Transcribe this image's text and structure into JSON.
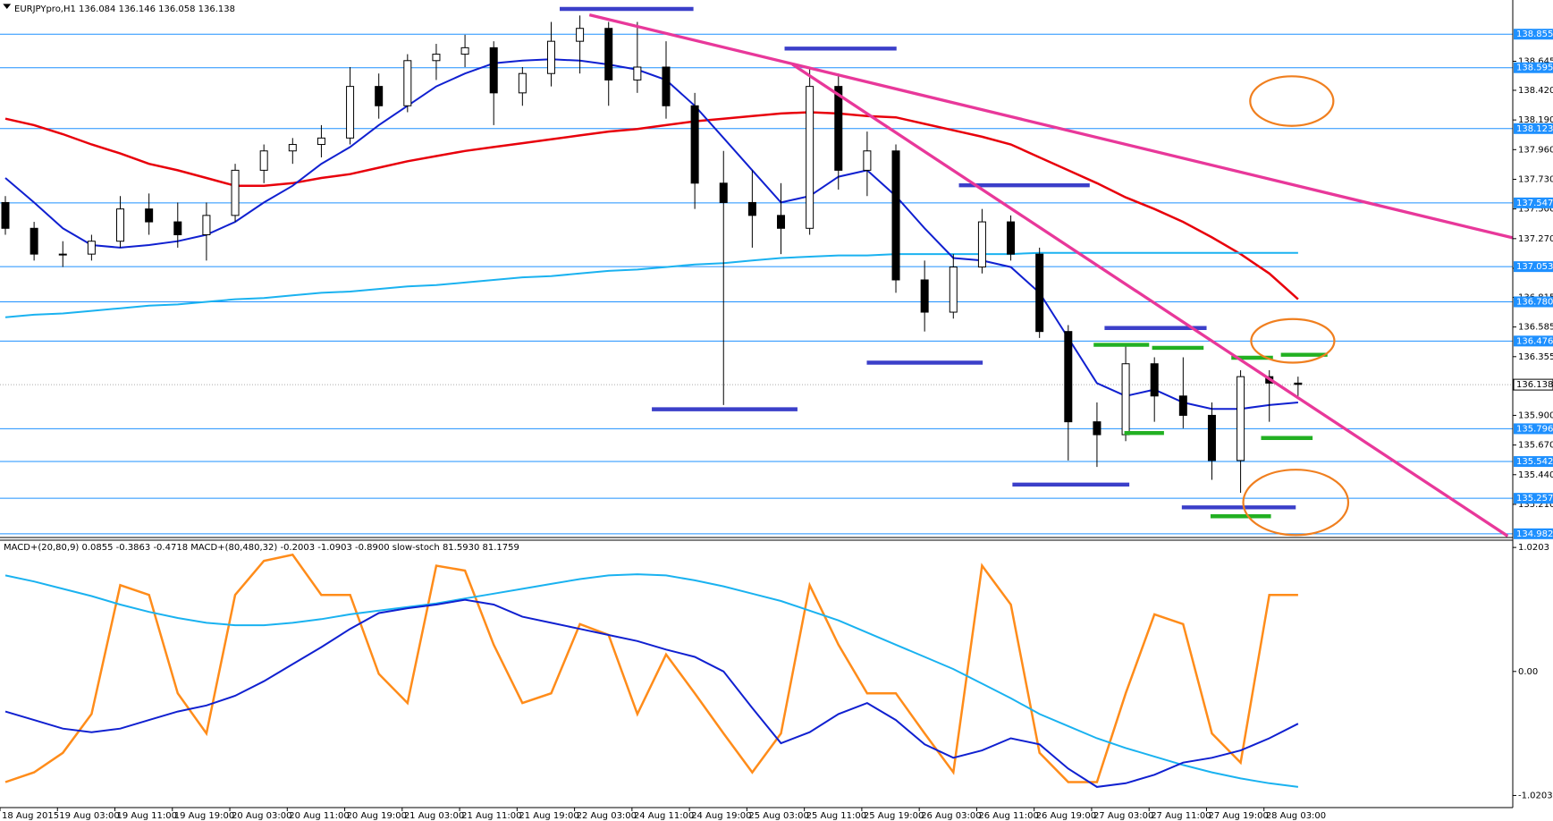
{
  "chart_data": {
    "type": "candlestick",
    "title": "EURJPYpro,H1 136.084 136.146 136.058 136.138",
    "categories": [
      "18 Aug 2015",
      null,
      "19 Aug 03:00",
      null,
      "19 Aug 11:00",
      null,
      "19 Aug 19:00",
      null,
      "20 Aug 03:00",
      null,
      "20 Aug 11:00",
      null,
      "20 Aug 19:00",
      null,
      "21 Aug 03:00",
      null,
      "21 Aug 11:00",
      null,
      "21 Aug 19:00",
      null,
      "22 Aug 03:00",
      null,
      "24 Aug 11:00",
      null,
      "24 Aug 19:00",
      null,
      "25 Aug 03:00",
      null,
      "25 Aug 11:00",
      null,
      "25 Aug 19:00",
      null,
      "26 Aug 03:00",
      null,
      "26 Aug 11:00",
      null,
      "26 Aug 19:00",
      null,
      "27 Aug 03:00",
      null,
      "27 Aug 11:00",
      null,
      "27 Aug 19:00",
      null,
      "28 Aug 03:00",
      null
    ],
    "open": [
      137.55,
      137.35,
      137.15,
      137.15,
      137.25,
      137.5,
      137.4,
      137.3,
      137.45,
      137.8,
      137.95,
      138.0,
      138.05,
      138.45,
      138.3,
      138.65,
      138.7,
      138.75,
      138.4,
      138.55,
      138.8,
      138.9,
      138.5,
      138.6,
      138.3,
      137.7,
      137.55,
      137.45,
      137.35,
      138.45,
      137.8,
      137.95,
      136.95,
      136.7,
      137.05,
      137.4,
      137.15,
      136.55,
      135.85,
      135.75,
      136.3,
      136.05,
      135.9,
      135.55,
      136.2,
      136.15
    ],
    "high": [
      137.6,
      137.4,
      137.25,
      137.3,
      137.6,
      137.62,
      137.55,
      137.55,
      137.85,
      138.0,
      138.05,
      138.15,
      138.6,
      138.55,
      138.7,
      138.78,
      138.85,
      138.8,
      138.6,
      138.95,
      139.0,
      138.95,
      138.95,
      138.8,
      138.4,
      137.95,
      137.8,
      137.7,
      138.6,
      138.55,
      138.1,
      138.0,
      137.1,
      137.15,
      137.5,
      137.45,
      137.2,
      136.6,
      136.0,
      136.45,
      136.35,
      136.35,
      136.0,
      136.25,
      136.25,
      136.2
    ],
    "low": [
      137.3,
      137.1,
      137.05,
      137.1,
      137.2,
      137.3,
      137.2,
      137.1,
      137.4,
      137.7,
      137.85,
      137.9,
      138.0,
      138.2,
      138.25,
      138.5,
      138.6,
      138.15,
      138.3,
      138.45,
      138.55,
      138.3,
      138.4,
      138.2,
      137.5,
      135.98,
      137.2,
      137.15,
      137.3,
      137.65,
      137.6,
      136.85,
      136.55,
      136.65,
      137.0,
      137.1,
      136.5,
      135.55,
      135.5,
      135.7,
      135.85,
      135.8,
      135.4,
      135.3,
      135.85,
      136.05
    ],
    "close": [
      137.35,
      137.15,
      137.15,
      137.25,
      137.5,
      137.4,
      137.3,
      137.45,
      137.8,
      137.95,
      138.0,
      138.05,
      138.45,
      138.3,
      138.65,
      138.7,
      138.75,
      138.4,
      138.55,
      138.8,
      138.9,
      138.5,
      138.6,
      138.3,
      137.7,
      137.55,
      137.45,
      137.35,
      138.45,
      137.8,
      137.95,
      136.95,
      136.7,
      137.05,
      137.4,
      137.15,
      136.55,
      135.85,
      135.75,
      136.3,
      136.05,
      135.9,
      135.55,
      136.2,
      136.15,
      136.14
    ],
    "overlays": [
      {
        "color": "#e8000b",
        "values": [
          138.2,
          138.15,
          138.08,
          138.0,
          137.93,
          137.85,
          137.8,
          137.74,
          137.68,
          137.68,
          137.7,
          137.74,
          137.77,
          137.82,
          137.87,
          137.91,
          137.95,
          137.98,
          138.01,
          138.04,
          138.07,
          138.1,
          138.12,
          138.15,
          138.18,
          138.2,
          138.22,
          138.24,
          138.25,
          138.24,
          138.22,
          138.21,
          138.16,
          138.11,
          138.06,
          138.0,
          137.9,
          137.8,
          137.7,
          137.59,
          137.5,
          137.4,
          137.28,
          137.15,
          137.0,
          136.8
        ]
      },
      {
        "color": "#1ab2f0",
        "values": [
          136.66,
          136.68,
          136.69,
          136.71,
          136.73,
          136.75,
          136.76,
          136.78,
          136.8,
          136.81,
          136.83,
          136.85,
          136.86,
          136.88,
          136.9,
          136.91,
          136.93,
          136.95,
          136.97,
          136.98,
          137.0,
          137.02,
          137.03,
          137.05,
          137.07,
          137.08,
          137.1,
          137.12,
          137.13,
          137.14,
          137.14,
          137.15,
          137.15,
          137.15,
          137.15,
          137.15,
          137.16,
          137.16,
          137.16,
          137.16,
          137.16,
          137.16,
          137.16,
          137.16,
          137.16,
          137.16
        ]
      },
      {
        "color": "#1020d0",
        "values": [
          137.74,
          137.55,
          137.35,
          137.22,
          137.2,
          137.22,
          137.25,
          137.3,
          137.4,
          137.55,
          137.68,
          137.85,
          137.98,
          138.15,
          138.3,
          138.45,
          138.55,
          138.63,
          138.65,
          138.66,
          138.65,
          138.62,
          138.58,
          138.5,
          138.3,
          138.05,
          137.8,
          137.55,
          137.6,
          137.75,
          137.8,
          137.6,
          137.35,
          137.12,
          137.1,
          137.05,
          136.85,
          136.5,
          136.15,
          136.05,
          136.1,
          136.0,
          135.95,
          135.95,
          135.98,
          136.0
        ]
      }
    ],
    "ylim": [
      134.96,
      139.12
    ],
    "yticks": [
      138.645,
      {
        "value": 138.42,
        "label": "138.420"
      },
      {
        "value": 138.19,
        "label": "138.190"
      },
      {
        "value": 137.96,
        "label": "137.960"
      },
      {
        "value": 137.73,
        "label": "137.730"
      },
      {
        "value": 137.5,
        "label": "137.500"
      },
      {
        "value": 137.27,
        "label": "137.270"
      },
      {
        "value": 137.04,
        "label": "137.040"
      },
      136.815,
      136.585,
      136.355,
      136.125,
      {
        "value": 135.9,
        "label": "135.900"
      },
      {
        "value": 135.67,
        "label": "135.670"
      },
      {
        "value": 135.44,
        "label": "135.440"
      },
      {
        "value": 135.21,
        "label": "135.210"
      }
    ],
    "levels": [
      138.855,
      138.595,
      138.123,
      137.547,
      137.053,
      {
        "value": 136.78,
        "label": "136.780"
      },
      136.476,
      135.796,
      135.542,
      135.257,
      134.982
    ],
    "level_color": "#1e90ff",
    "current_price": 136.138,
    "indicator": {
      "title": "MACD+(20,80,9) 0.0855 -0.3863 -0.4718 MACD+(80,480,32) -0.2003 -1.0903 -0.8900 slow-stoch 81.5930 81.1759",
      "ylim": [
        -1.12,
        1.08
      ],
      "yticks": [
        1.0203,
        {
          "value": 0,
          "label": "0.00"
        },
        -1.0203
      ],
      "series": [
        {
          "color": "#ff8c1a",
          "values": [
            -0.91,
            -0.83,
            -0.67,
            -0.35,
            0.71,
            0.63,
            -0.18,
            -0.51,
            0.63,
            0.91,
            0.96,
            0.63,
            0.63,
            -0.02,
            -0.26,
            0.87,
            0.83,
            0.22,
            -0.26,
            -0.18,
            0.39,
            0.3,
            -0.35,
            0.14,
            -0.18,
            -0.51,
            -0.83,
            -0.51,
            0.71,
            0.22,
            -0.18,
            -0.18,
            -0.51,
            -0.83,
            0.87,
            0.55,
            -0.67,
            -0.91,
            -0.91,
            -0.18,
            0.47,
            0.39,
            -0.51,
            -0.75,
            0.63,
            0.63
          ]
        },
        {
          "color": "#1ab2f0",
          "values": [
            0.79,
            0.74,
            0.68,
            0.62,
            0.55,
            0.49,
            0.44,
            0.4,
            0.38,
            0.38,
            0.4,
            0.43,
            0.47,
            0.5,
            0.53,
            0.56,
            0.6,
            0.64,
            0.68,
            0.72,
            0.76,
            0.79,
            0.8,
            0.79,
            0.75,
            0.7,
            0.64,
            0.58,
            0.5,
            0.42,
            0.32,
            0.22,
            0.12,
            0.02,
            -0.1,
            -0.22,
            -0.35,
            -0.45,
            -0.55,
            -0.63,
            -0.7,
            -0.77,
            -0.83,
            -0.88,
            -0.92,
            -0.95
          ]
        },
        {
          "color": "#1020d0",
          "values": [
            -0.33,
            -0.4,
            -0.47,
            -0.5,
            -0.47,
            -0.4,
            -0.33,
            -0.28,
            -0.2,
            -0.08,
            0.06,
            0.2,
            0.35,
            0.48,
            0.52,
            0.55,
            0.59,
            0.55,
            0.45,
            0.4,
            0.35,
            0.3,
            0.25,
            0.18,
            0.12,
            0.0,
            -0.3,
            -0.59,
            -0.5,
            -0.35,
            -0.26,
            -0.4,
            -0.6,
            -0.71,
            -0.65,
            -0.55,
            -0.6,
            -0.8,
            -0.95,
            -0.92,
            -0.85,
            -0.75,
            -0.71,
            -0.65,
            -0.55,
            -0.43
          ]
        }
      ]
    }
  }
}
